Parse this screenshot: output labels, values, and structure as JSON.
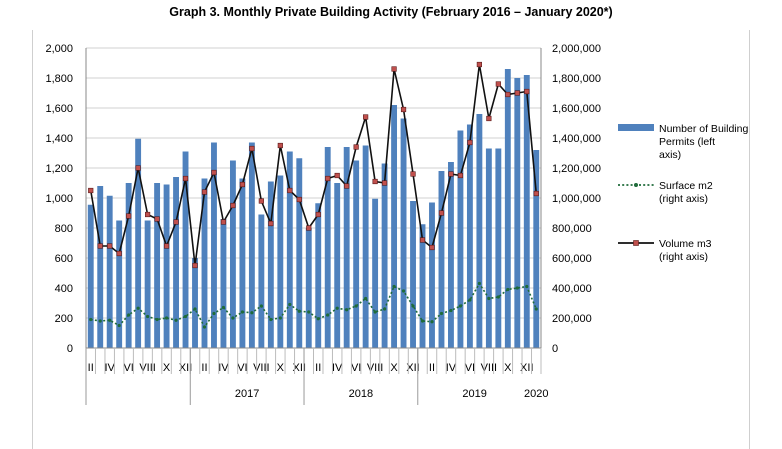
{
  "chart_data": {
    "type": "bar",
    "title": "Graph 3. Monthly Private Building Activity (February 2016 – January 2020*)",
    "left_axis": {
      "min": 0,
      "max": 2000,
      "step": 200,
      "tick_labels": [
        "0",
        "200",
        "400",
        "600",
        "800",
        "1,000",
        "1,200",
        "1,400",
        "1,600",
        "1,800",
        "2,000"
      ]
    },
    "right_axis": {
      "min": 0,
      "max": 2000000,
      "step": 200000,
      "tick_labels": [
        "0",
        "200,000",
        "400,000",
        "600,000",
        "800,000",
        "1,000,000",
        "1,200,000",
        "1,400,000",
        "1,600,000",
        "1,800,000",
        "2,000,000"
      ]
    },
    "x_month_labels": [
      "II",
      "IV",
      "VI",
      "VIII",
      "X",
      "XII",
      "II",
      "IV",
      "VI",
      "VIII",
      "X",
      "XII",
      "II",
      "IV",
      "VI",
      "VIII",
      "X",
      "XII",
      "II",
      "IV",
      "VI",
      "VIII",
      "X",
      "XII"
    ],
    "x_year_labels": [
      "2017",
      "2018",
      "2019",
      "2020"
    ],
    "grid": true,
    "legend_position": "right",
    "colors": {
      "bars": "#4f81bd",
      "surface": "#1f6b3a",
      "volume_line": "#111111",
      "volume_marker": "#c0504d"
    },
    "series": [
      {
        "name": "Number of Building Permits (left axis)",
        "type": "bar",
        "axis": "left",
        "values": [
          955,
          1080,
          1015,
          850,
          1100,
          1395,
          850,
          1100,
          1090,
          1140,
          1310,
          600,
          1130,
          1370,
          860,
          1250,
          1130,
          1370,
          890,
          1110,
          1150,
          1310,
          1265,
          800,
          965,
          1340,
          1100,
          1340,
          1250,
          1350,
          995,
          1230,
          1620,
          1530,
          980,
          825,
          970,
          1180,
          1240,
          1450,
          1490,
          1560,
          1330,
          1330,
          1860,
          1800,
          1820,
          1320
        ]
      },
      {
        "name": "Surface m2 (right axis)",
        "type": "line",
        "axis": "right",
        "values": [
          190000,
          180000,
          185000,
          150000,
          220000,
          265000,
          210000,
          190000,
          200000,
          185000,
          210000,
          260000,
          140000,
          230000,
          270000,
          200000,
          240000,
          235000,
          280000,
          190000,
          200000,
          290000,
          245000,
          240000,
          195000,
          220000,
          265000,
          255000,
          280000,
          330000,
          240000,
          260000,
          410000,
          380000,
          280000,
          180000,
          175000,
          230000,
          250000,
          280000,
          320000,
          430000,
          330000,
          340000,
          390000,
          400000,
          410000,
          260000
        ]
      },
      {
        "name": "Volume m3 (right axis)",
        "type": "line",
        "axis": "right",
        "values": [
          1050000,
          680000,
          680000,
          630000,
          880000,
          1200000,
          890000,
          860000,
          680000,
          840000,
          1130000,
          550000,
          1040000,
          1170000,
          840000,
          950000,
          1090000,
          1330000,
          980000,
          830000,
          1350000,
          1050000,
          990000,
          800000,
          890000,
          1130000,
          1150000,
          1080000,
          1340000,
          1540000,
          1110000,
          1100000,
          1860000,
          1590000,
          1160000,
          720000,
          670000,
          900000,
          1160000,
          1150000,
          1370000,
          1890000,
          1530000,
          1760000,
          1690000,
          1700000,
          1710000,
          1030000
        ]
      }
    ]
  }
}
